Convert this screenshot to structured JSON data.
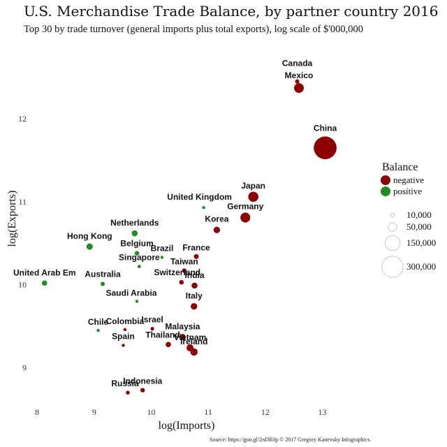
{
  "chart_data": {
    "type": "scatter",
    "title": "U.S. Merchandise Trade Balance, by partner country 2016",
    "subtitle": "Top 30 by trade turnover (general imports plus total exports), log scale of $'000,000",
    "xlabel": "log(Imports)",
    "ylabel": "log(Exports)",
    "xlim": [
      7.9,
      13.9
    ],
    "ylim": [
      8.55,
      12.8
    ],
    "x_ticks": [
      8,
      9,
      10,
      11,
      12,
      13
    ],
    "y_ticks": [
      9,
      10,
      11,
      12
    ],
    "x_tick_labels": [
      "8",
      "9",
      "10",
      "11",
      "12",
      "13"
    ],
    "y_tick_labels": [
      "9",
      "10",
      "11",
      "12"
    ],
    "colors": {
      "negative": "#8b0000",
      "positive": "#228b22"
    },
    "points": [
      {
        "label": "Canada",
        "x": 12.56,
        "y": 12.45,
        "balance": "negative",
        "size": 12000
      },
      {
        "label": "Mexico",
        "x": 12.59,
        "y": 12.37,
        "balance": "negative",
        "size": 63000
      },
      {
        "label": "China",
        "x": 13.05,
        "y": 11.65,
        "balance": "negative",
        "size": 347000
      },
      {
        "label": "Japan",
        "x": 11.79,
        "y": 11.06,
        "balance": "negative",
        "size": 69000
      },
      {
        "label": "United Kingdom",
        "x": 10.92,
        "y": 10.93,
        "balance": "positive",
        "size": 2000
      },
      {
        "label": "Germany",
        "x": 11.65,
        "y": 10.81,
        "balance": "negative",
        "size": 65000
      },
      {
        "label": "Korea",
        "x": 11.15,
        "y": 10.66,
        "balance": "negative",
        "size": 28000
      },
      {
        "label": "Netherlands",
        "x": 9.71,
        "y": 10.62,
        "balance": "positive",
        "size": 24000
      },
      {
        "label": "Hong Kong",
        "x": 8.92,
        "y": 10.46,
        "balance": "positive",
        "size": 27000
      },
      {
        "label": "Belgium",
        "x": 9.75,
        "y": 10.38,
        "balance": "positive",
        "size": 14000
      },
      {
        "label": "Brazil",
        "x": 10.19,
        "y": 10.33,
        "balance": "positive",
        "size": 3800
      },
      {
        "label": "France",
        "x": 10.79,
        "y": 10.34,
        "balance": "negative",
        "size": 16000
      },
      {
        "label": "Singapore",
        "x": 9.79,
        "y": 10.22,
        "balance": "positive",
        "size": 7700
      },
      {
        "label": "Taiwan",
        "x": 10.58,
        "y": 10.17,
        "balance": "negative",
        "size": 13000
      },
      {
        "label": "United Arab Em",
        "x": 8.13,
        "y": 10.02,
        "balance": "positive",
        "size": 19000
      },
      {
        "label": "Australia",
        "x": 9.15,
        "y": 10.01,
        "balance": "positive",
        "size": 12000
      },
      {
        "label": "Switzerland",
        "x": 10.53,
        "y": 10.03,
        "balance": "negative",
        "size": 14000
      },
      {
        "label": "India",
        "x": 10.76,
        "y": 9.99,
        "balance": "negative",
        "size": 24000
      },
      {
        "label": "Saudi Arabia",
        "x": 9.75,
        "y": 9.8,
        "balance": "positive",
        "size": 1400
      },
      {
        "label": "Italy",
        "x": 10.75,
        "y": 9.74,
        "balance": "negative",
        "size": 28000
      },
      {
        "label": "Chile",
        "x": 9.07,
        "y": 9.45,
        "balance": "positive",
        "size": 3400
      },
      {
        "label": "Colombia",
        "x": 9.54,
        "y": 9.46,
        "balance": "negative",
        "size": 1000
      },
      {
        "label": "Israel",
        "x": 10.02,
        "y": 9.47,
        "balance": "negative",
        "size": 9000
      },
      {
        "label": "Malaysia",
        "x": 10.55,
        "y": 9.37,
        "balance": "negative",
        "size": 25000
      },
      {
        "label": "Spain",
        "x": 9.51,
        "y": 9.27,
        "balance": "negative",
        "size": 4000
      },
      {
        "label": "Thailand",
        "x": 10.3,
        "y": 9.28,
        "balance": "negative",
        "size": 19000
      },
      {
        "label": "Vietnam",
        "x": 10.68,
        "y": 9.24,
        "balance": "negative",
        "size": 32000
      },
      {
        "label": "Ireland",
        "x": 10.75,
        "y": 9.19,
        "balance": "negative",
        "size": 36000
      },
      {
        "label": "Indonesia",
        "x": 9.85,
        "y": 8.73,
        "balance": "negative",
        "size": 13000
      },
      {
        "label": "Russia",
        "x": 9.59,
        "y": 8.7,
        "balance": "negative",
        "size": 10000
      }
    ],
    "legend": {
      "title": "Balance",
      "color_entries": [
        {
          "label": "negative",
          "key": "negative"
        },
        {
          "label": "positive",
          "key": "positive"
        }
      ],
      "size_entries": [
        {
          "label": "10,000",
          "value": 10000
        },
        {
          "label": "50,000",
          "value": 50000
        },
        {
          "label": "150,000",
          "value": 150000
        },
        {
          "label": "300,000",
          "value": 300000
        }
      ]
    },
    "source": "Source: https://goo.gl/2nDR0p © 2017 Gregory Kanevsky Infographics."
  }
}
